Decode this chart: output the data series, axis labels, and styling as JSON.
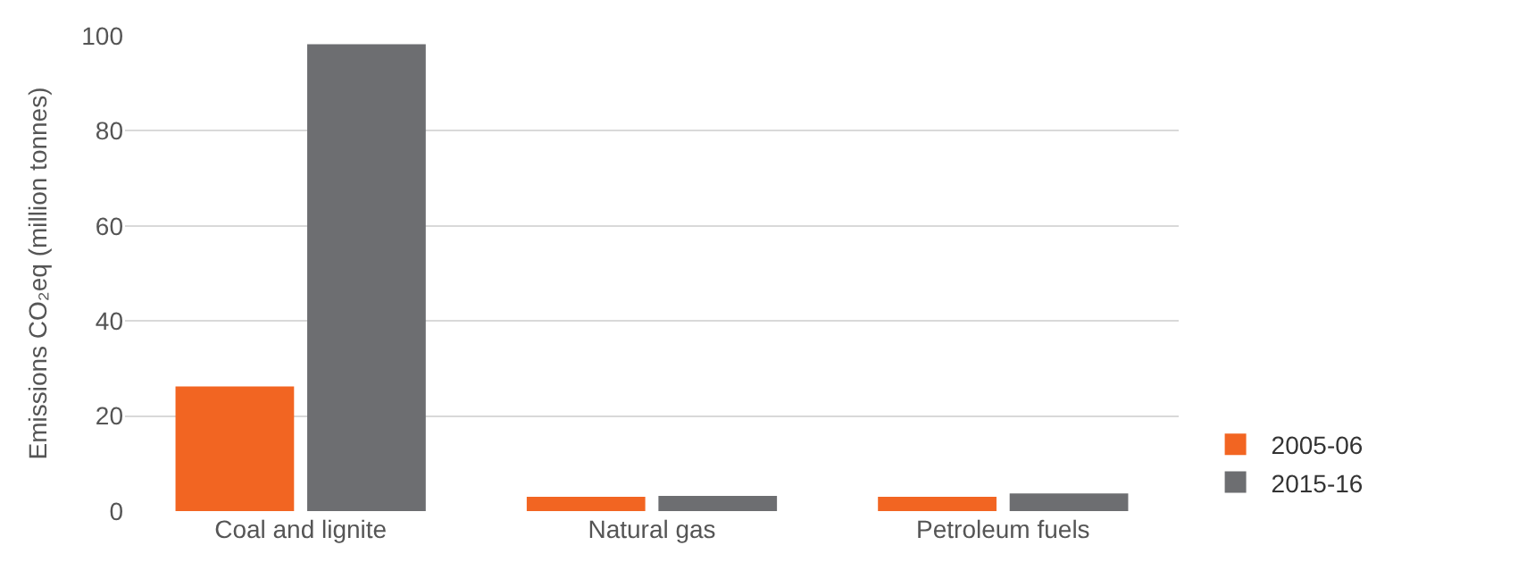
{
  "chart_data": {
    "type": "bar",
    "ylabel": "Emissions CO₂eq (million tonnes)",
    "categories": [
      "Coal and lignite",
      "Natural gas",
      "Petroleum fuels"
    ],
    "series": [
      {
        "name": "2005-06",
        "color": "#f26522",
        "values": [
          26.2,
          3.0,
          3.0
        ]
      },
      {
        "name": "2015-16",
        "color": "#6d6e71",
        "values": [
          98.2,
          3.2,
          3.7
        ]
      }
    ],
    "ylim": [
      0,
      100
    ],
    "yticks": [
      0,
      20,
      40,
      60,
      80,
      100
    ],
    "grid": "y",
    "legend": "bottom right"
  }
}
